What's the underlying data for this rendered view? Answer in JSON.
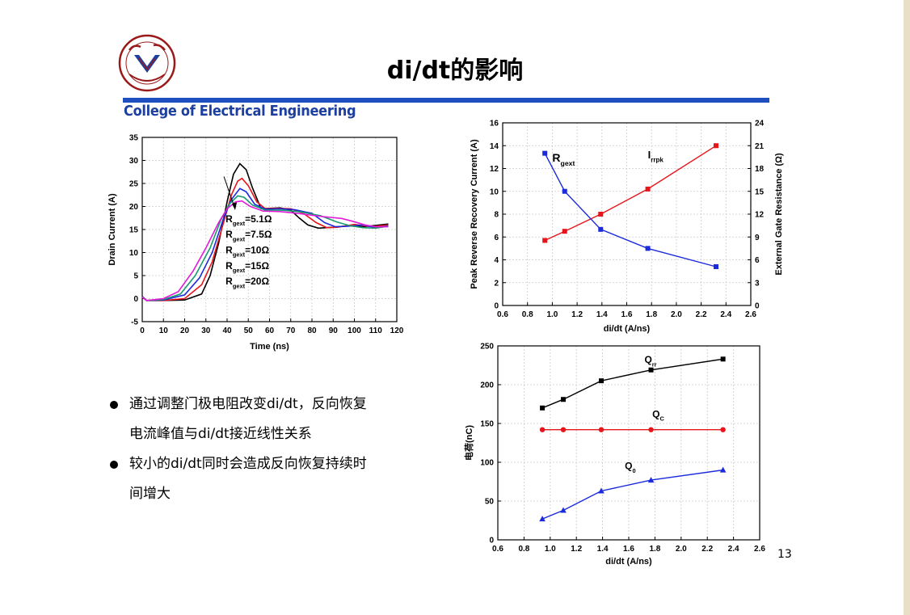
{
  "title": "di/dt的影响",
  "header": {
    "college": "College of Electrical Engineering",
    "logo_text": "ZHEJIANG UNIVERSITY"
  },
  "bullets": [
    {
      "lines": [
        "通过调整门极电阻改变di/dt，反向恢复",
        "电流峰值与di/dt接近线性关系"
      ]
    },
    {
      "lines": [
        "较小的di/dt同时会造成反向恢复持续时",
        "间增大"
      ]
    }
  ],
  "page_number": "13",
  "colors": {
    "header_bar": "#1f4fbf",
    "college_text": "#1d3f9f",
    "black": "#000000",
    "red": "#e8141c",
    "blue": "#1b2bdc",
    "green": "#1a9a70",
    "magenta": "#e21ad8",
    "stripe": "#e8dfc6"
  },
  "chart_data": [
    {
      "type": "line",
      "xlabel": "Time (ns)",
      "ylabel": "Drain Current (A)",
      "xlim": [
        0,
        120
      ],
      "ylim": [
        -5,
        35
      ],
      "xticks": [
        "0",
        "10",
        "20",
        "30",
        "40",
        "50",
        "60",
        "70",
        "80",
        "90",
        "100",
        "110",
        "120"
      ],
      "yticks": [
        "-5",
        "0",
        "5",
        "10",
        "15",
        "20",
        "25",
        "30",
        "35"
      ],
      "grid": true,
      "series": [
        {
          "name": "R_gext=5.1Ω",
          "color": "#000000",
          "points": [
            [
              0,
              0.5
            ],
            [
              2,
              -0.4
            ],
            [
              10,
              -0.4
            ],
            [
              20,
              -0.3
            ],
            [
              28,
              1
            ],
            [
              32,
              5
            ],
            [
              36,
              12
            ],
            [
              40,
              21
            ],
            [
              43,
              27
            ],
            [
              46,
              29.3
            ],
            [
              49,
              28
            ],
            [
              52,
              24
            ],
            [
              56,
              19.5
            ],
            [
              60,
              19.6
            ],
            [
              65,
              19.7
            ],
            [
              70,
              19.2
            ],
            [
              74,
              17.5
            ],
            [
              78,
              16.0
            ],
            [
              83,
              15.3
            ],
            [
              90,
              15.5
            ],
            [
              97,
              15.8
            ],
            [
              104,
              15.6
            ],
            [
              110,
              15.9
            ],
            [
              116,
              16.2
            ]
          ]
        },
        {
          "name": "R_gext=7.5Ω",
          "color": "#e8141c",
          "points": [
            [
              0,
              0.4
            ],
            [
              2,
              -0.4
            ],
            [
              10,
              -0.4
            ],
            [
              20,
              0
            ],
            [
              28,
              3
            ],
            [
              33,
              8
            ],
            [
              38,
              16
            ],
            [
              42,
              22.5
            ],
            [
              45,
              25.5
            ],
            [
              47,
              26.1
            ],
            [
              50,
              24.5
            ],
            [
              54,
              21
            ],
            [
              58,
              19.5
            ],
            [
              63,
              19.6
            ],
            [
              70,
              19.5
            ],
            [
              76,
              18.5
            ],
            [
              82,
              16.5
            ],
            [
              87,
              15.4
            ],
            [
              92,
              15.5
            ],
            [
              100,
              16.1
            ],
            [
              108,
              15.6
            ],
            [
              116,
              16.0
            ]
          ]
        },
        {
          "name": "R_gext=10Ω",
          "color": "#1b2bdc",
          "points": [
            [
              0,
              0.4
            ],
            [
              2,
              -0.4
            ],
            [
              10,
              -0.3
            ],
            [
              20,
              0.8
            ],
            [
              27,
              4.5
            ],
            [
              33,
              10
            ],
            [
              38,
              17
            ],
            [
              42,
              21.5
            ],
            [
              46,
              23.9
            ],
            [
              49,
              23.2
            ],
            [
              53,
              20.5
            ],
            [
              58,
              19.4
            ],
            [
              65,
              19.5
            ],
            [
              72,
              19.3
            ],
            [
              80,
              18.5
            ],
            [
              86,
              16.5
            ],
            [
              91,
              15.6
            ],
            [
              97,
              15.7
            ],
            [
              104,
              16.0
            ],
            [
              110,
              15.4
            ],
            [
              116,
              15.8
            ]
          ]
        },
        {
          "name": "R_gext=15Ω",
          "color": "#1a9a70",
          "points": [
            [
              0,
              0.4
            ],
            [
              2,
              -0.4
            ],
            [
              10,
              -0.2
            ],
            [
              18,
              1
            ],
            [
              25,
              5
            ],
            [
              32,
              11
            ],
            [
              37,
              17
            ],
            [
              41,
              20.5
            ],
            [
              45,
              22.3
            ],
            [
              48,
              22
            ],
            [
              52,
              20.3
            ],
            [
              58,
              19.2
            ],
            [
              66,
              19.2
            ],
            [
              75,
              18.8
            ],
            [
              84,
              18.0
            ],
            [
              92,
              16.6
            ],
            [
              98,
              15.8
            ],
            [
              104,
              15.4
            ],
            [
              110,
              15.3
            ],
            [
              116,
              15.7
            ]
          ]
        },
        {
          "name": "R_gext=20Ω",
          "color": "#e21ad8",
          "points": [
            [
              0,
              0.3
            ],
            [
              2,
              -0.4
            ],
            [
              10,
              0
            ],
            [
              17,
              1.5
            ],
            [
              24,
              6
            ],
            [
              30,
              11
            ],
            [
              36,
              16.5
            ],
            [
              40,
              19.5
            ],
            [
              44,
              21.0
            ],
            [
              47,
              21.2
            ],
            [
              51,
              20
            ],
            [
              57,
              19.0
            ],
            [
              65,
              18.9
            ],
            [
              75,
              18.4
            ],
            [
              85,
              17.8
            ],
            [
              94,
              17.4
            ],
            [
              99,
              16.8
            ],
            [
              105,
              16.0
            ],
            [
              110,
              15.6
            ],
            [
              116,
              15.6
            ]
          ]
        }
      ],
      "legend": [
        {
          "main": "R",
          "sub": "gext",
          "tail": "=5.1Ω"
        },
        {
          "main": "R",
          "sub": "gext",
          "tail": "=7.5Ω"
        },
        {
          "main": "R",
          "sub": "gext",
          "tail": "=10Ω"
        },
        {
          "main": "R",
          "sub": "gext",
          "tail": "=15Ω"
        },
        {
          "main": "R",
          "sub": "gext",
          "tail": "=20Ω"
        }
      ]
    },
    {
      "type": "line",
      "xlabel": "di/dt (A/ns)",
      "ylabel": "Peak Reverse Recovery Current (A)",
      "y2label": "External Gate Resistance (Ω)",
      "xlim": [
        0.6,
        2.6
      ],
      "ylim": [
        0,
        16
      ],
      "y2lim": [
        0,
        24
      ],
      "xticks": [
        "0.6",
        "0.8",
        "1.0",
        "1.2",
        "1.4",
        "1.6",
        "1.8",
        "2.0",
        "2.2",
        "2.4",
        "2.6"
      ],
      "yticks": [
        "0",
        "2",
        "4",
        "6",
        "8",
        "10",
        "12",
        "14",
        "16"
      ],
      "y2ticks": [
        "0",
        "3",
        "6",
        "9",
        "12",
        "15",
        "18",
        "21",
        "24"
      ],
      "grid": true,
      "series": [
        {
          "name": "I_rrpk",
          "color": "#e8141c",
          "axis": "left",
          "x": [
            0.94,
            1.1,
            1.39,
            1.77,
            2.32
          ],
          "y": [
            5.7,
            6.5,
            8.0,
            10.2,
            14.0
          ]
        },
        {
          "name": "R_gext",
          "color": "#1b2bdc",
          "axis": "right",
          "x": [
            0.94,
            1.1,
            1.39,
            1.77,
            2.32
          ],
          "y": [
            20,
            15,
            10,
            7.5,
            5.1
          ]
        }
      ],
      "annotations": [
        {
          "main": "R",
          "sub": "gext"
        },
        {
          "main": "I",
          "sub": "rrpk"
        }
      ]
    },
    {
      "type": "line",
      "xlabel": "di/dt (A/ns)",
      "ylabel": "电荷(nC)",
      "xlim": [
        0.6,
        2.6
      ],
      "ylim": [
        0,
        250
      ],
      "xticks": [
        "0.6",
        "0.8",
        "1.0",
        "1.2",
        "1.4",
        "1.6",
        "1.8",
        "2.0",
        "2.2",
        "2.4",
        "2.6"
      ],
      "yticks": [
        "0",
        "50",
        "100",
        "150",
        "200",
        "250"
      ],
      "grid": true,
      "series": [
        {
          "name": "Q_rr",
          "color": "#000000",
          "marker": "square",
          "x": [
            0.94,
            1.1,
            1.39,
            1.77,
            2.32
          ],
          "y": [
            170,
            181,
            205,
            219,
            233
          ]
        },
        {
          "name": "Q_C",
          "color": "#e8141c",
          "marker": "circle",
          "x": [
            0.94,
            1.1,
            1.39,
            1.77,
            2.32
          ],
          "y": [
            142,
            142,
            142,
            142,
            142
          ]
        },
        {
          "name": "Q_0",
          "color": "#1b2bdc",
          "marker": "triangle",
          "x": [
            0.94,
            1.1,
            1.39,
            1.77,
            2.32
          ],
          "y": [
            27,
            38,
            63,
            77,
            90
          ]
        }
      ],
      "annotations": [
        {
          "main": "Q",
          "sub": "rr"
        },
        {
          "main": "Q",
          "sub": "C"
        },
        {
          "main": "Q",
          "sub": "0"
        }
      ]
    }
  ]
}
